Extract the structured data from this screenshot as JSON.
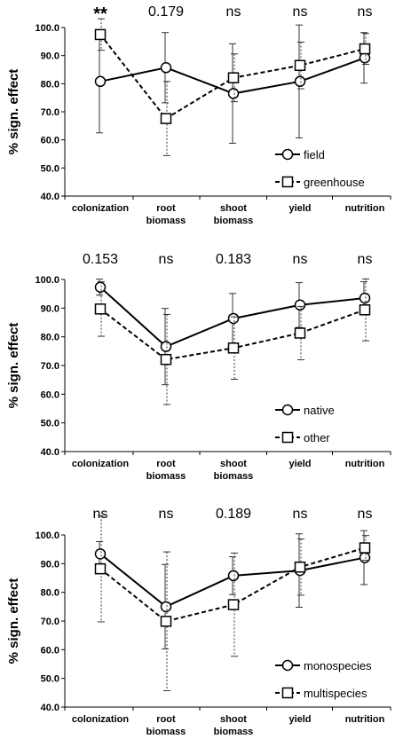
{
  "chart_data": [
    {
      "type": "line",
      "ylabel": "% sign. effect",
      "ylim": [
        40,
        100
      ],
      "yticks": [
        "40.0",
        "50.0",
        "60.0",
        "70.0",
        "80.0",
        "90.0",
        "100.0"
      ],
      "categories": [
        [
          "colonization"
        ],
        [
          "root",
          "biomass"
        ],
        [
          "shoot",
          "biomass"
        ],
        [
          "yield"
        ],
        [
          "nutrition"
        ]
      ],
      "significance": [
        "**",
        "0.179",
        "ns",
        "ns",
        "ns"
      ],
      "legend_position": "lower-right",
      "series": [
        {
          "name": "field",
          "style": "solid",
          "marker": "circle",
          "values": [
            80.8,
            85.7,
            76.5,
            80.8,
            89.2
          ],
          "errors": [
            18.3,
            12.5,
            17.7,
            20.1,
            9.0
          ]
        },
        {
          "name": "greenhouse",
          "style": "dashed",
          "marker": "square",
          "values": [
            97.5,
            67.6,
            82.1,
            86.5,
            92.4
          ],
          "errors": [
            5.6,
            13.2,
            8.5,
            8.3,
            5.5
          ]
        }
      ]
    },
    {
      "type": "line",
      "ylabel": "% sign. effect",
      "ylim": [
        40,
        100
      ],
      "yticks": [
        "40.0",
        "50.0",
        "60.0",
        "70.0",
        "80.0",
        "90.0",
        "100.0"
      ],
      "categories": [
        [
          "colonization"
        ],
        [
          "root",
          "biomass"
        ],
        [
          "shoot",
          "biomass"
        ],
        [
          "yield"
        ],
        [
          "nutrition"
        ]
      ],
      "significance": [
        "0.153",
        "ns",
        "0.183",
        "ns",
        "ns"
      ],
      "legend_position": "lower-right",
      "series": [
        {
          "name": "native",
          "style": "solid",
          "marker": "circle",
          "values": [
            97.3,
            76.6,
            86.4,
            91.1,
            93.5
          ],
          "errors": [
            2.8,
            13.3,
            8.7,
            7.8,
            5.7
          ]
        },
        {
          "name": "other",
          "style": "dashed",
          "marker": "square",
          "values": [
            89.7,
            72.1,
            76.1,
            81.3,
            89.4
          ],
          "errors": [
            9.5,
            15.7,
            10.9,
            9.3,
            10.8
          ]
        }
      ]
    },
    {
      "type": "line",
      "ylabel": "% sign. effect",
      "ylim": [
        40,
        100
      ],
      "yticks": [
        "40.0",
        "50.0",
        "60.0",
        "70.0",
        "80.0",
        "90.0",
        "100.0"
      ],
      "categories": [
        [
          "colonization"
        ],
        [
          "root",
          "biomass"
        ],
        [
          "shoot",
          "biomass"
        ],
        [
          "yield"
        ],
        [
          "nutrition"
        ]
      ],
      "significance": [
        "ns",
        "ns",
        "0.189",
        "ns",
        "ns"
      ],
      "legend_position": "lower-right",
      "series": [
        {
          "name": "monospecies",
          "style": "solid",
          "marker": "circle",
          "values": [
            93.4,
            75.0,
            85.8,
            87.6,
            92.1
          ],
          "errors": [
            4.3,
            14.7,
            6.6,
            12.8,
            9.4
          ]
        },
        {
          "name": "multispecies",
          "style": "dashed",
          "marker": "square",
          "values": [
            88.2,
            69.9,
            75.7,
            88.8,
            95.5
          ],
          "errors": [
            18.5,
            24.2,
            18.0,
            9.8,
            4.3
          ]
        }
      ]
    }
  ]
}
